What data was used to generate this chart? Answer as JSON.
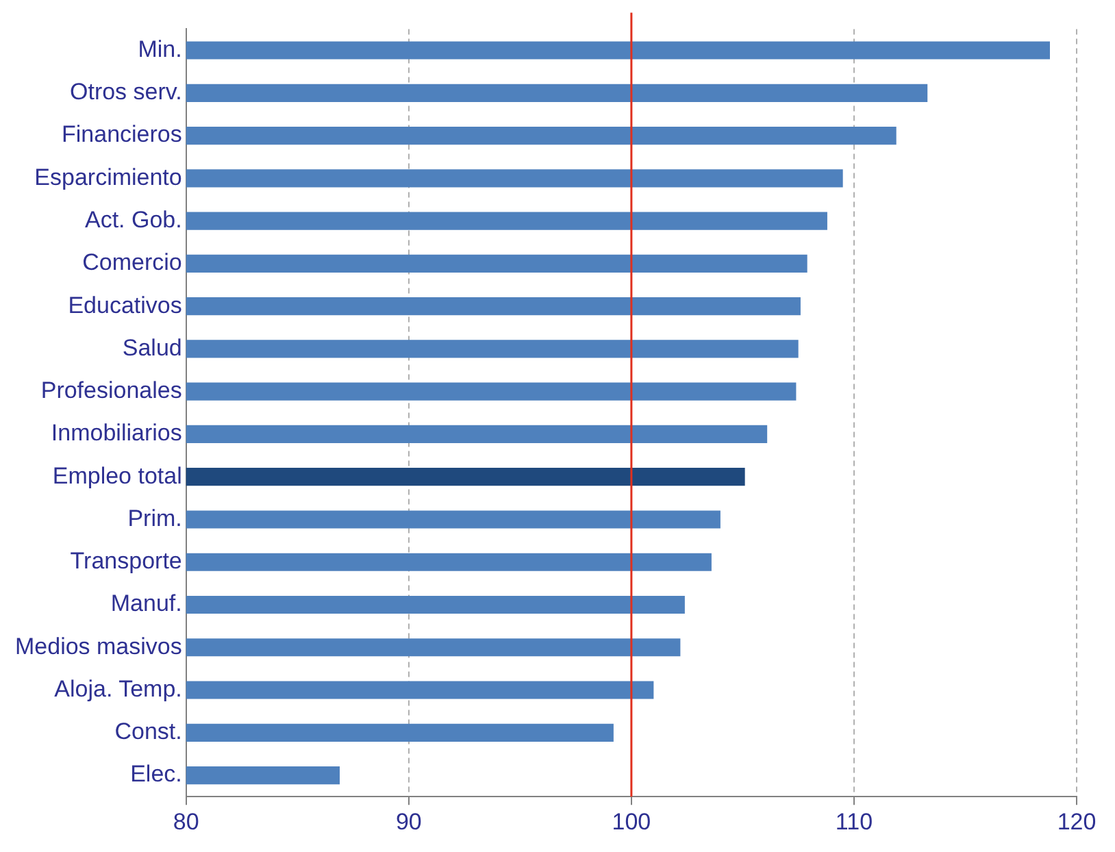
{
  "chart_data": {
    "type": "bar",
    "orientation": "horizontal",
    "categories": [
      "Min.",
      "Otros serv.",
      "Financieros",
      "Esparcimiento",
      "Act. Gob.",
      "Comercio",
      "Educativos",
      "Salud",
      "Profesionales",
      "Inmobiliarios",
      "Empleo total",
      "Prim.",
      "Transporte",
      "Manuf.",
      "Medios masivos",
      "Aloja. Temp.",
      "Const.",
      "Elec."
    ],
    "values": [
      118.8,
      113.3,
      111.9,
      109.5,
      108.8,
      107.9,
      107.6,
      107.5,
      107.4,
      106.1,
      105.1,
      104.0,
      103.6,
      102.4,
      102.2,
      101.0,
      99.2,
      86.9
    ],
    "colors": [
      "#4f81bd",
      "#4f81bd",
      "#4f81bd",
      "#4f81bd",
      "#4f81bd",
      "#4f81bd",
      "#4f81bd",
      "#4f81bd",
      "#4f81bd",
      "#4f81bd",
      "#1f497d",
      "#4f81bd",
      "#4f81bd",
      "#4f81bd",
      "#4f81bd",
      "#4f81bd",
      "#4f81bd",
      "#4f81bd"
    ],
    "xlim": [
      80,
      120
    ],
    "xticks": [
      80,
      90,
      100,
      110,
      120
    ],
    "grid": "x",
    "legend": false,
    "ref_lines": [
      {
        "axis": "x",
        "value": 100,
        "color": "#e0301e"
      }
    ]
  }
}
